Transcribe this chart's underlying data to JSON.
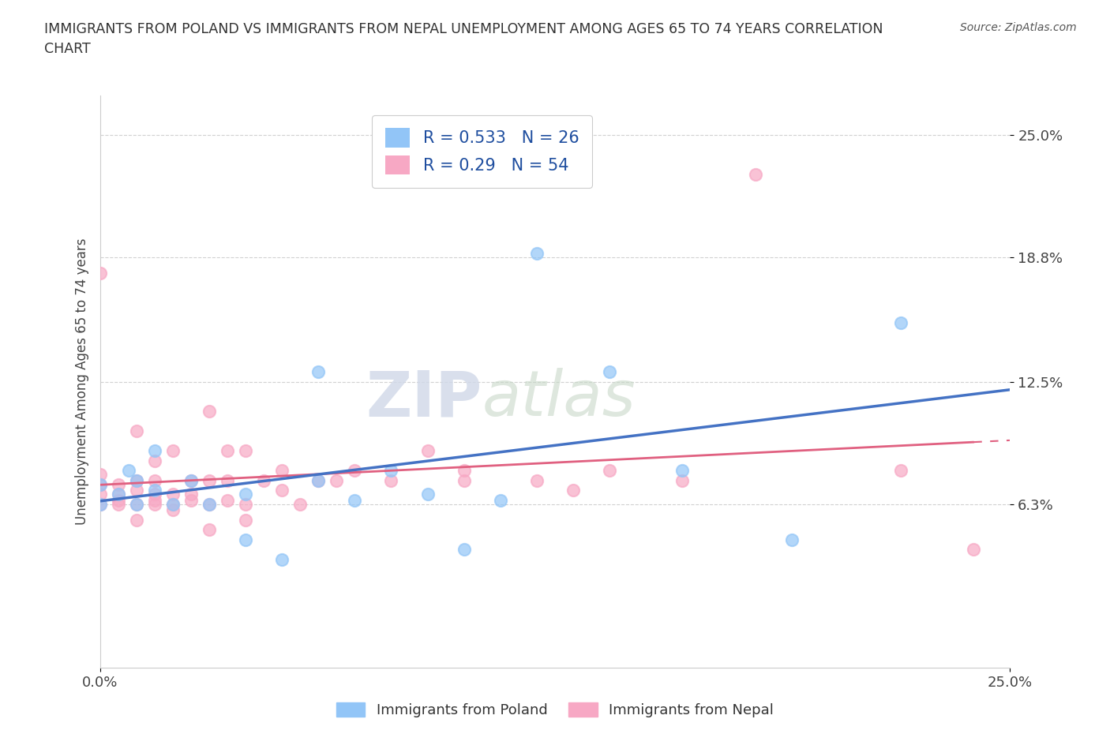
{
  "title": "IMMIGRANTS FROM POLAND VS IMMIGRANTS FROM NEPAL UNEMPLOYMENT AMONG AGES 65 TO 74 YEARS CORRELATION\nCHART",
  "source": "Source: ZipAtlas.com",
  "ylabel": "Unemployment Among Ages 65 to 74 years",
  "ytick_labels": [
    "6.3%",
    "12.5%",
    "18.8%",
    "25.0%"
  ],
  "ytick_values": [
    0.063,
    0.125,
    0.188,
    0.25
  ],
  "xlim": [
    0.0,
    0.25
  ],
  "ylim": [
    -0.02,
    0.27
  ],
  "poland_color": "#92C5F7",
  "poland_line_color": "#4472C4",
  "nepal_color": "#F7A8C4",
  "nepal_line_color": "#E06080",
  "poland_R": 0.533,
  "poland_N": 26,
  "nepal_R": 0.29,
  "nepal_N": 54,
  "legend_R_color": "#1F4E9F",
  "poland_scatter_x": [
    0.0,
    0.0,
    0.005,
    0.008,
    0.01,
    0.01,
    0.015,
    0.015,
    0.02,
    0.025,
    0.03,
    0.04,
    0.04,
    0.05,
    0.06,
    0.06,
    0.07,
    0.08,
    0.09,
    0.1,
    0.11,
    0.12,
    0.14,
    0.16,
    0.19,
    0.22
  ],
  "poland_scatter_y": [
    0.063,
    0.073,
    0.068,
    0.08,
    0.063,
    0.075,
    0.07,
    0.09,
    0.063,
    0.075,
    0.063,
    0.045,
    0.068,
    0.035,
    0.075,
    0.13,
    0.065,
    0.08,
    0.068,
    0.04,
    0.065,
    0.19,
    0.13,
    0.08,
    0.045,
    0.155
  ],
  "nepal_scatter_x": [
    0.0,
    0.0,
    0.0,
    0.0,
    0.0,
    0.005,
    0.005,
    0.005,
    0.005,
    0.01,
    0.01,
    0.01,
    0.01,
    0.01,
    0.015,
    0.015,
    0.015,
    0.015,
    0.015,
    0.02,
    0.02,
    0.02,
    0.02,
    0.025,
    0.025,
    0.025,
    0.03,
    0.03,
    0.03,
    0.03,
    0.035,
    0.035,
    0.035,
    0.04,
    0.04,
    0.04,
    0.045,
    0.05,
    0.05,
    0.055,
    0.06,
    0.065,
    0.07,
    0.08,
    0.09,
    0.1,
    0.1,
    0.12,
    0.13,
    0.14,
    0.16,
    0.18,
    0.22,
    0.24
  ],
  "nepal_scatter_y": [
    0.063,
    0.068,
    0.073,
    0.078,
    0.18,
    0.063,
    0.065,
    0.068,
    0.073,
    0.055,
    0.063,
    0.07,
    0.075,
    0.1,
    0.063,
    0.065,
    0.068,
    0.075,
    0.085,
    0.06,
    0.063,
    0.068,
    0.09,
    0.065,
    0.068,
    0.075,
    0.05,
    0.063,
    0.075,
    0.11,
    0.065,
    0.075,
    0.09,
    0.055,
    0.063,
    0.09,
    0.075,
    0.07,
    0.08,
    0.063,
    0.075,
    0.075,
    0.08,
    0.075,
    0.09,
    0.075,
    0.08,
    0.075,
    0.07,
    0.08,
    0.075,
    0.23,
    0.08,
    0.04
  ],
  "watermark_zip": "ZIP",
  "watermark_atlas": "atlas",
  "background_color": "#FFFFFF",
  "grid_color": "#CCCCCC",
  "legend_box_color": "#E8F0FD",
  "legend_nepal_box_color": "#FCE8F0"
}
